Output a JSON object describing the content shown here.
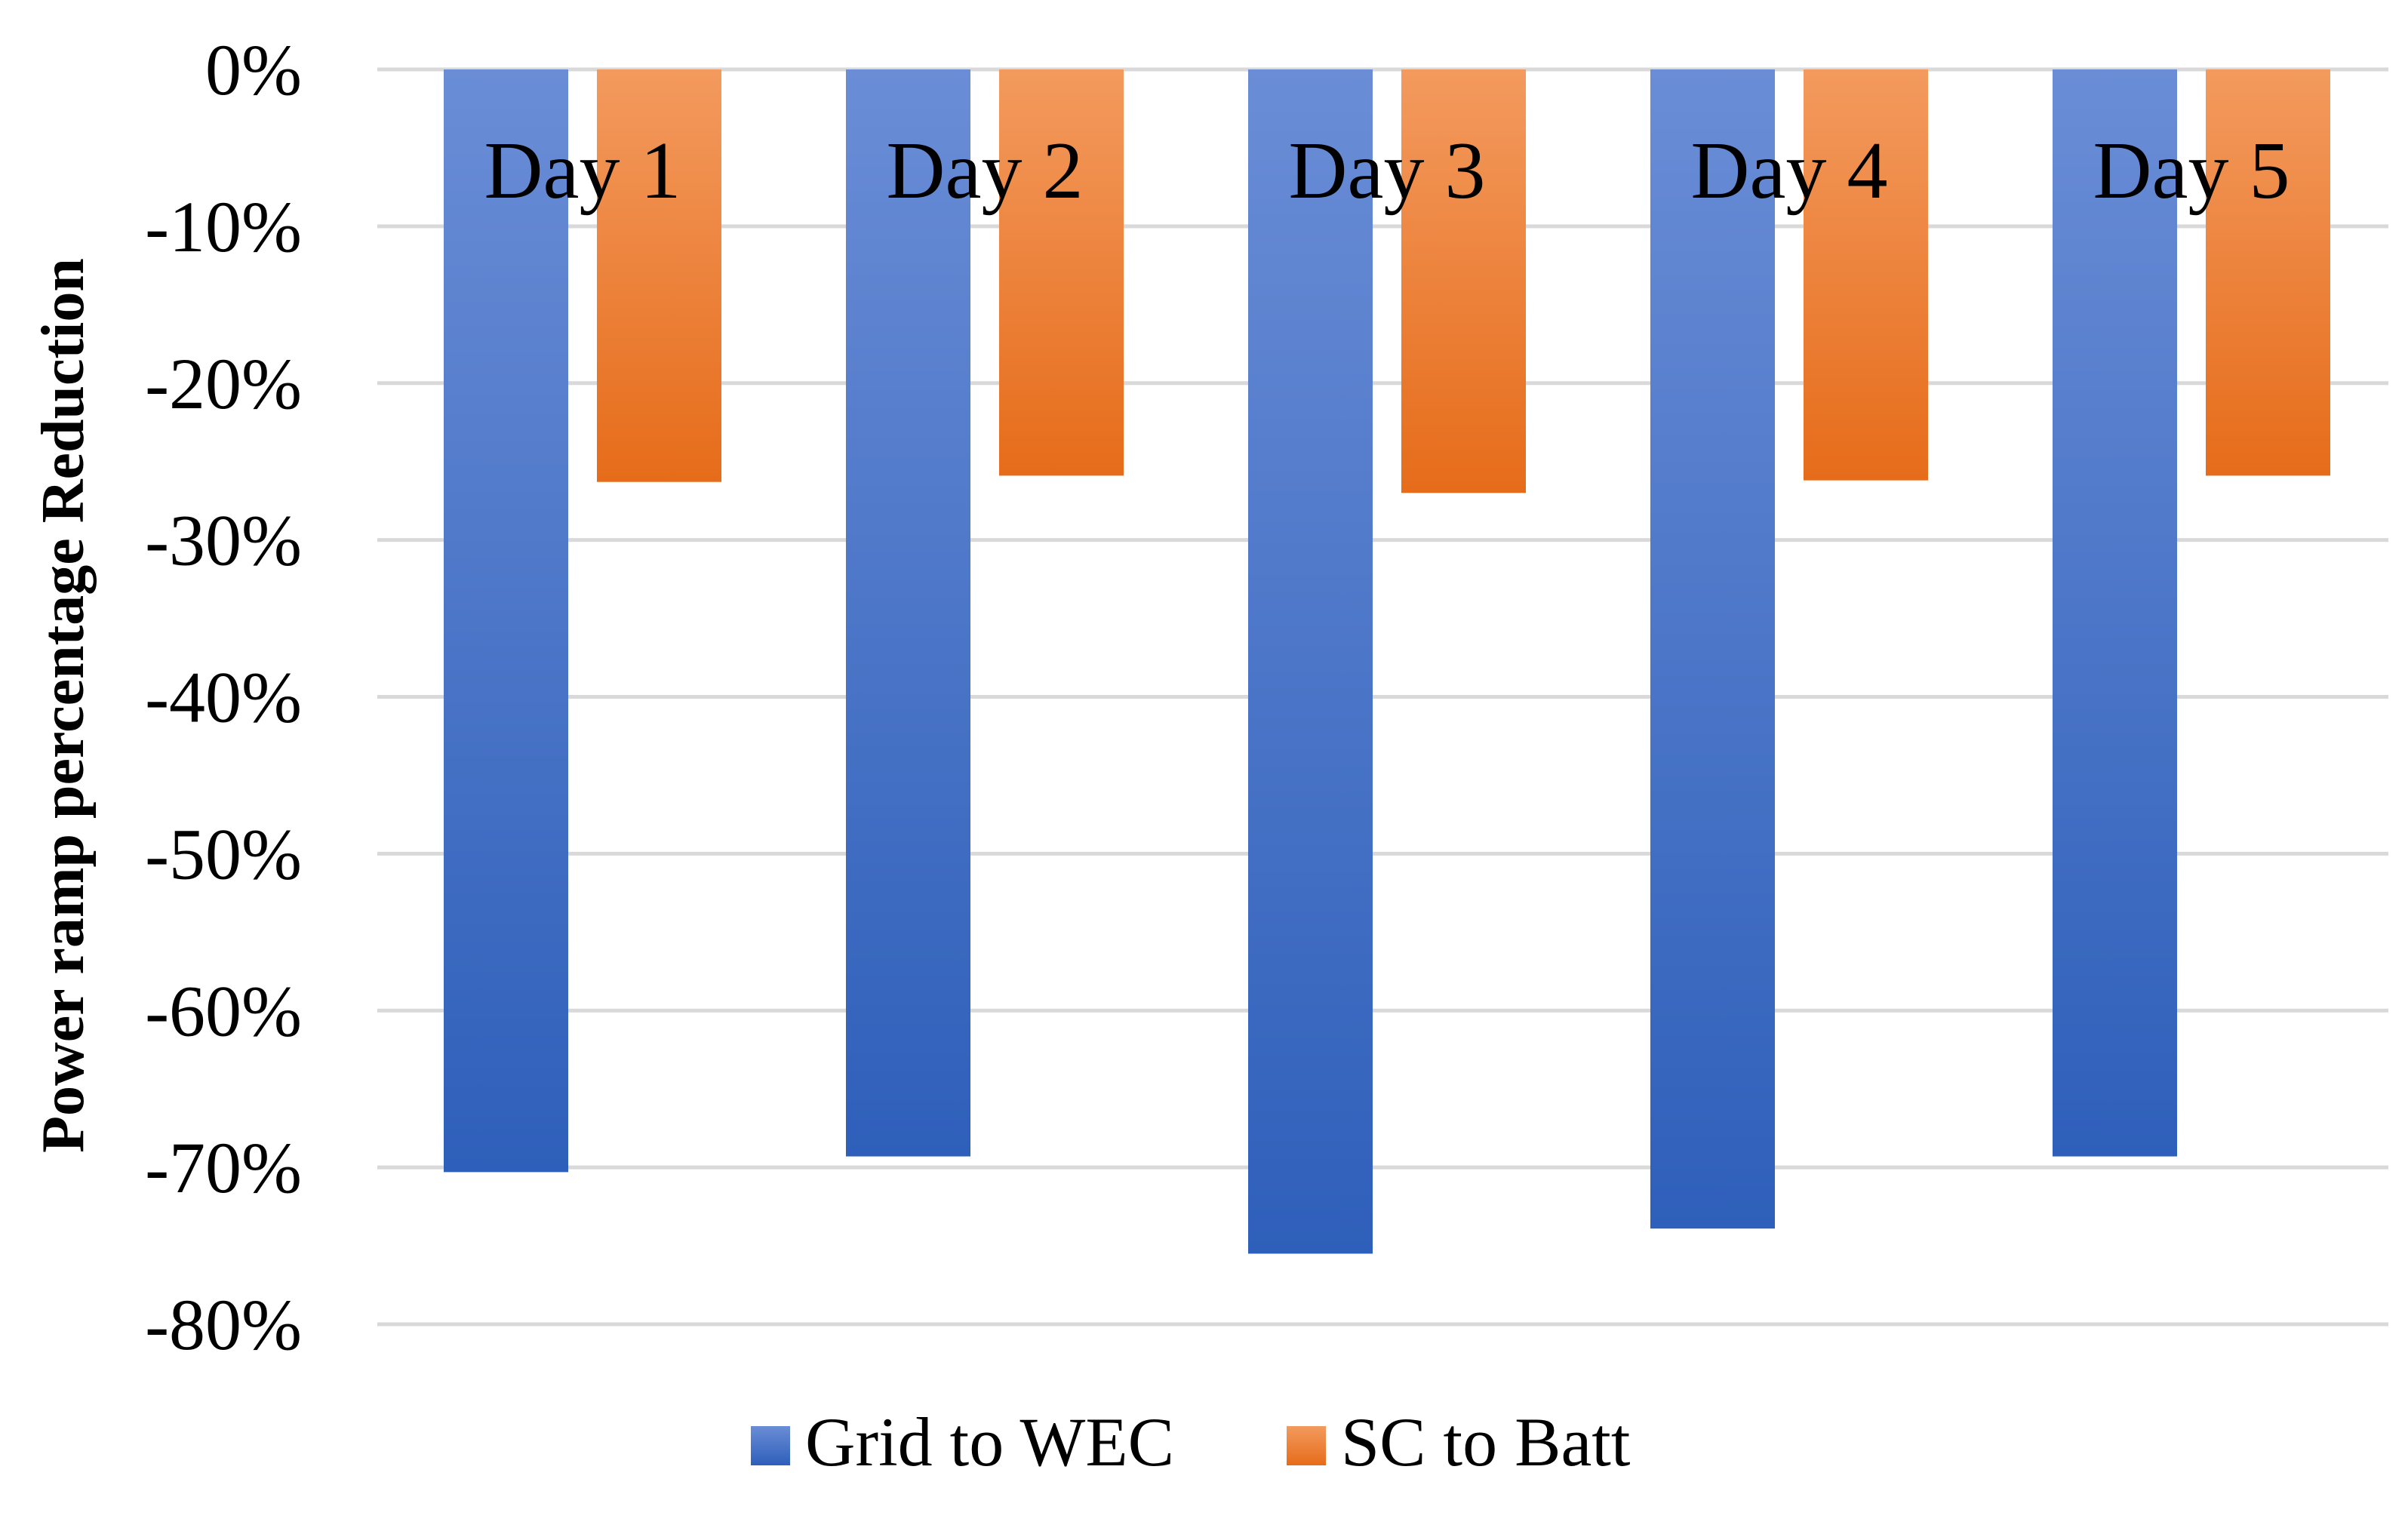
{
  "chart_data": {
    "type": "bar",
    "title": "",
    "xlabel": "",
    "ylabel": "Power ramp percentage Reduction",
    "categories": [
      "Day 1",
      "Day 2",
      "Day 3",
      "Day 4",
      "Day 5"
    ],
    "series": [
      {
        "name": "Grid to WEC",
        "values": [
          -70.3,
          -69.3,
          -75.5,
          -73.9,
          -69.3
        ],
        "color_top": "#6a8dd6",
        "color_bottom": "#2e5fba"
      },
      {
        "name": "SC to Batt",
        "values": [
          -26.3,
          -25.9,
          -27.0,
          -26.2,
          -25.9
        ],
        "color_top": "#f39a5e",
        "color_bottom": "#e66c1a"
      }
    ],
    "ylim": [
      -80,
      0
    ],
    "ytick_values": [
      0,
      -10,
      -20,
      -30,
      -40,
      -50,
      -60,
      -70,
      -80
    ],
    "ytick_labels": [
      "0%",
      "-10%",
      "-20%",
      "-30%",
      "-40%",
      "-50%",
      "-60%",
      "-70%",
      "-80%"
    ],
    "grid": true,
    "legend_position": "bottom-center"
  }
}
